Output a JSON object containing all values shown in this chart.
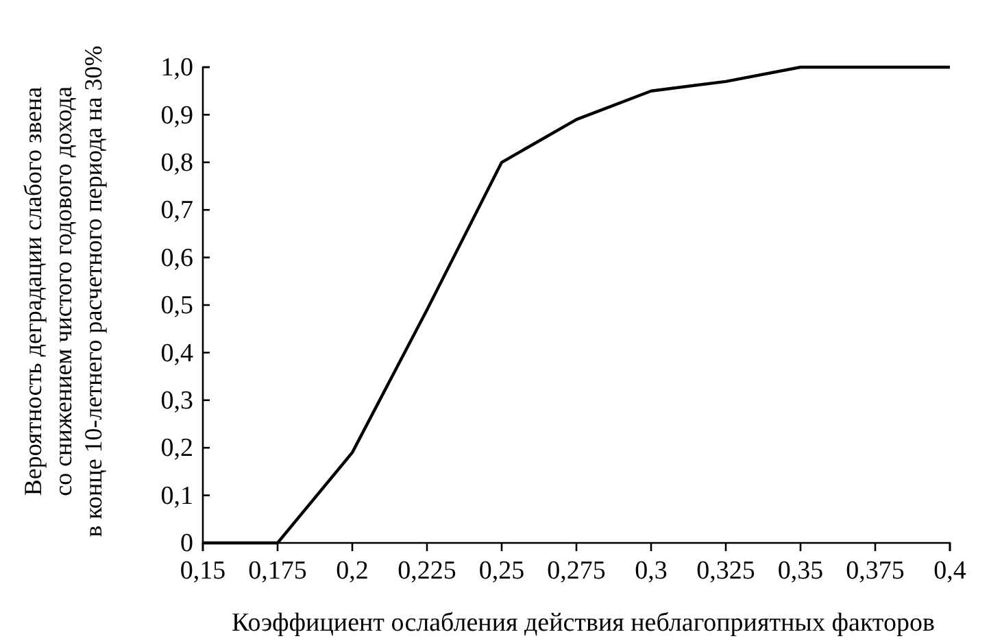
{
  "chart_data": {
    "type": "line",
    "xlabel": "Коэффициент ослабления действия неблагоприятных факторов",
    "ylabel": "Вероятность деградации слабого звена\nсо снижением чистого годового дохода\nв конце 10-летнего расчетного периода на 30%",
    "x": [
      0.15,
      0.175,
      0.2,
      0.225,
      0.25,
      0.275,
      0.3,
      0.325,
      0.35,
      0.375,
      0.4
    ],
    "series": [
      {
        "color": "#000000",
        "values": [
          0,
          0,
          0.19,
          0.49,
          0.8,
          0.89,
          0.95,
          0.97,
          1.0,
          1.0,
          1.0
        ]
      }
    ],
    "xlim": [
      0.15,
      0.4
    ],
    "ylim": [
      0,
      1
    ],
    "xticks": [
      {
        "value": 0.15,
        "label": "0,15"
      },
      {
        "value": 0.175,
        "label": "0,175"
      },
      {
        "value": 0.2,
        "label": "0,2"
      },
      {
        "value": 0.225,
        "label": "0,225"
      },
      {
        "value": 0.25,
        "label": "0,25"
      },
      {
        "value": 0.275,
        "label": "0,275"
      },
      {
        "value": 0.3,
        "label": "0,3"
      },
      {
        "value": 0.325,
        "label": "0,325"
      },
      {
        "value": 0.35,
        "label": "0,35"
      },
      {
        "value": 0.375,
        "label": "0,375"
      },
      {
        "value": 0.4,
        "label": "0,4"
      }
    ],
    "yticks": [
      0,
      {
        "value": 0.1,
        "label": "0,1"
      },
      {
        "value": 0.2,
        "label": "0,2"
      },
      {
        "value": 0.3,
        "label": "0,3"
      },
      {
        "value": 0.4,
        "label": "0,4"
      },
      {
        "value": 0.5,
        "label": "0,5"
      },
      {
        "value": 0.6,
        "label": "0,6"
      },
      {
        "value": 0.7,
        "label": "0,7"
      },
      {
        "value": 0.8,
        "label": "0,8"
      },
      {
        "value": 0.9,
        "label": "0,9"
      },
      {
        "value": 1,
        "label": "1,0"
      }
    ],
    "marker": "none",
    "line_style": "solid"
  }
}
